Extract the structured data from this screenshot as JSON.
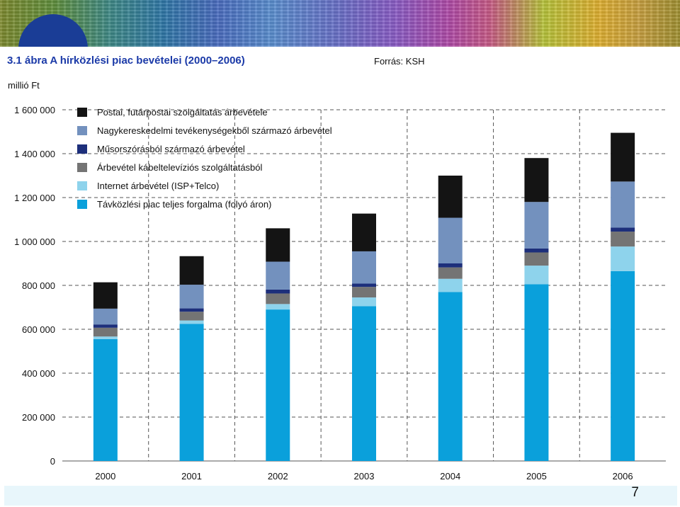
{
  "header": {
    "title": "3.1 ábra  A hírközlési piac bevételei (2000–2006)",
    "source": "Forrás: KSH",
    "unit": "millió Ft"
  },
  "page_number": "7",
  "chart_data": {
    "type": "bar",
    "stacked": true,
    "categories": [
      "2000",
      "2001",
      "2002",
      "2003",
      "2004",
      "2005",
      "2006"
    ],
    "ylim": [
      0,
      1600000
    ],
    "yticks": [
      0,
      200000,
      400000,
      600000,
      800000,
      1000000,
      1200000,
      1400000,
      1600000
    ],
    "ytick_labels": [
      "0",
      "200 000",
      "400 000",
      "600 000",
      "800 000",
      "1 000 000",
      "1 200 000",
      "1 400 000",
      "1 600 000"
    ],
    "grid": true,
    "legend_position": "top-left",
    "series": [
      {
        "name": "Távközlési piac teljes forgalma (folyó áron)",
        "color": "#0aa0db",
        "values": [
          555000,
          625000,
          690000,
          705000,
          770000,
          805000,
          865000
        ]
      },
      {
        "name": "Internet árbevétel (ISP+Telco)",
        "color": "#8ed3ec",
        "values": [
          12000,
          15000,
          25000,
          40000,
          60000,
          85000,
          112000
        ]
      },
      {
        "name": "Árbevétel kábeltelevíziós szolgáltatásból",
        "color": "#747474",
        "values": [
          40000,
          40000,
          48000,
          48000,
          52000,
          60000,
          68000
        ]
      },
      {
        "name": "Műsorszórásból származó árbevétel",
        "color": "#1d2f7b",
        "values": [
          15000,
          15000,
          18000,
          15000,
          18000,
          18000,
          18000
        ]
      },
      {
        "name": "Nagykereskedelmi tevékenységekből származó árbevétel",
        "color": "#7391be",
        "values": [
          72000,
          108000,
          127000,
          147000,
          208000,
          212000,
          210000
        ]
      },
      {
        "name": "Postai, futárpostai szolgáltatás árbevétele",
        "color": "#141414",
        "values": [
          120000,
          130000,
          152000,
          172000,
          192000,
          200000,
          222000
        ]
      }
    ]
  }
}
